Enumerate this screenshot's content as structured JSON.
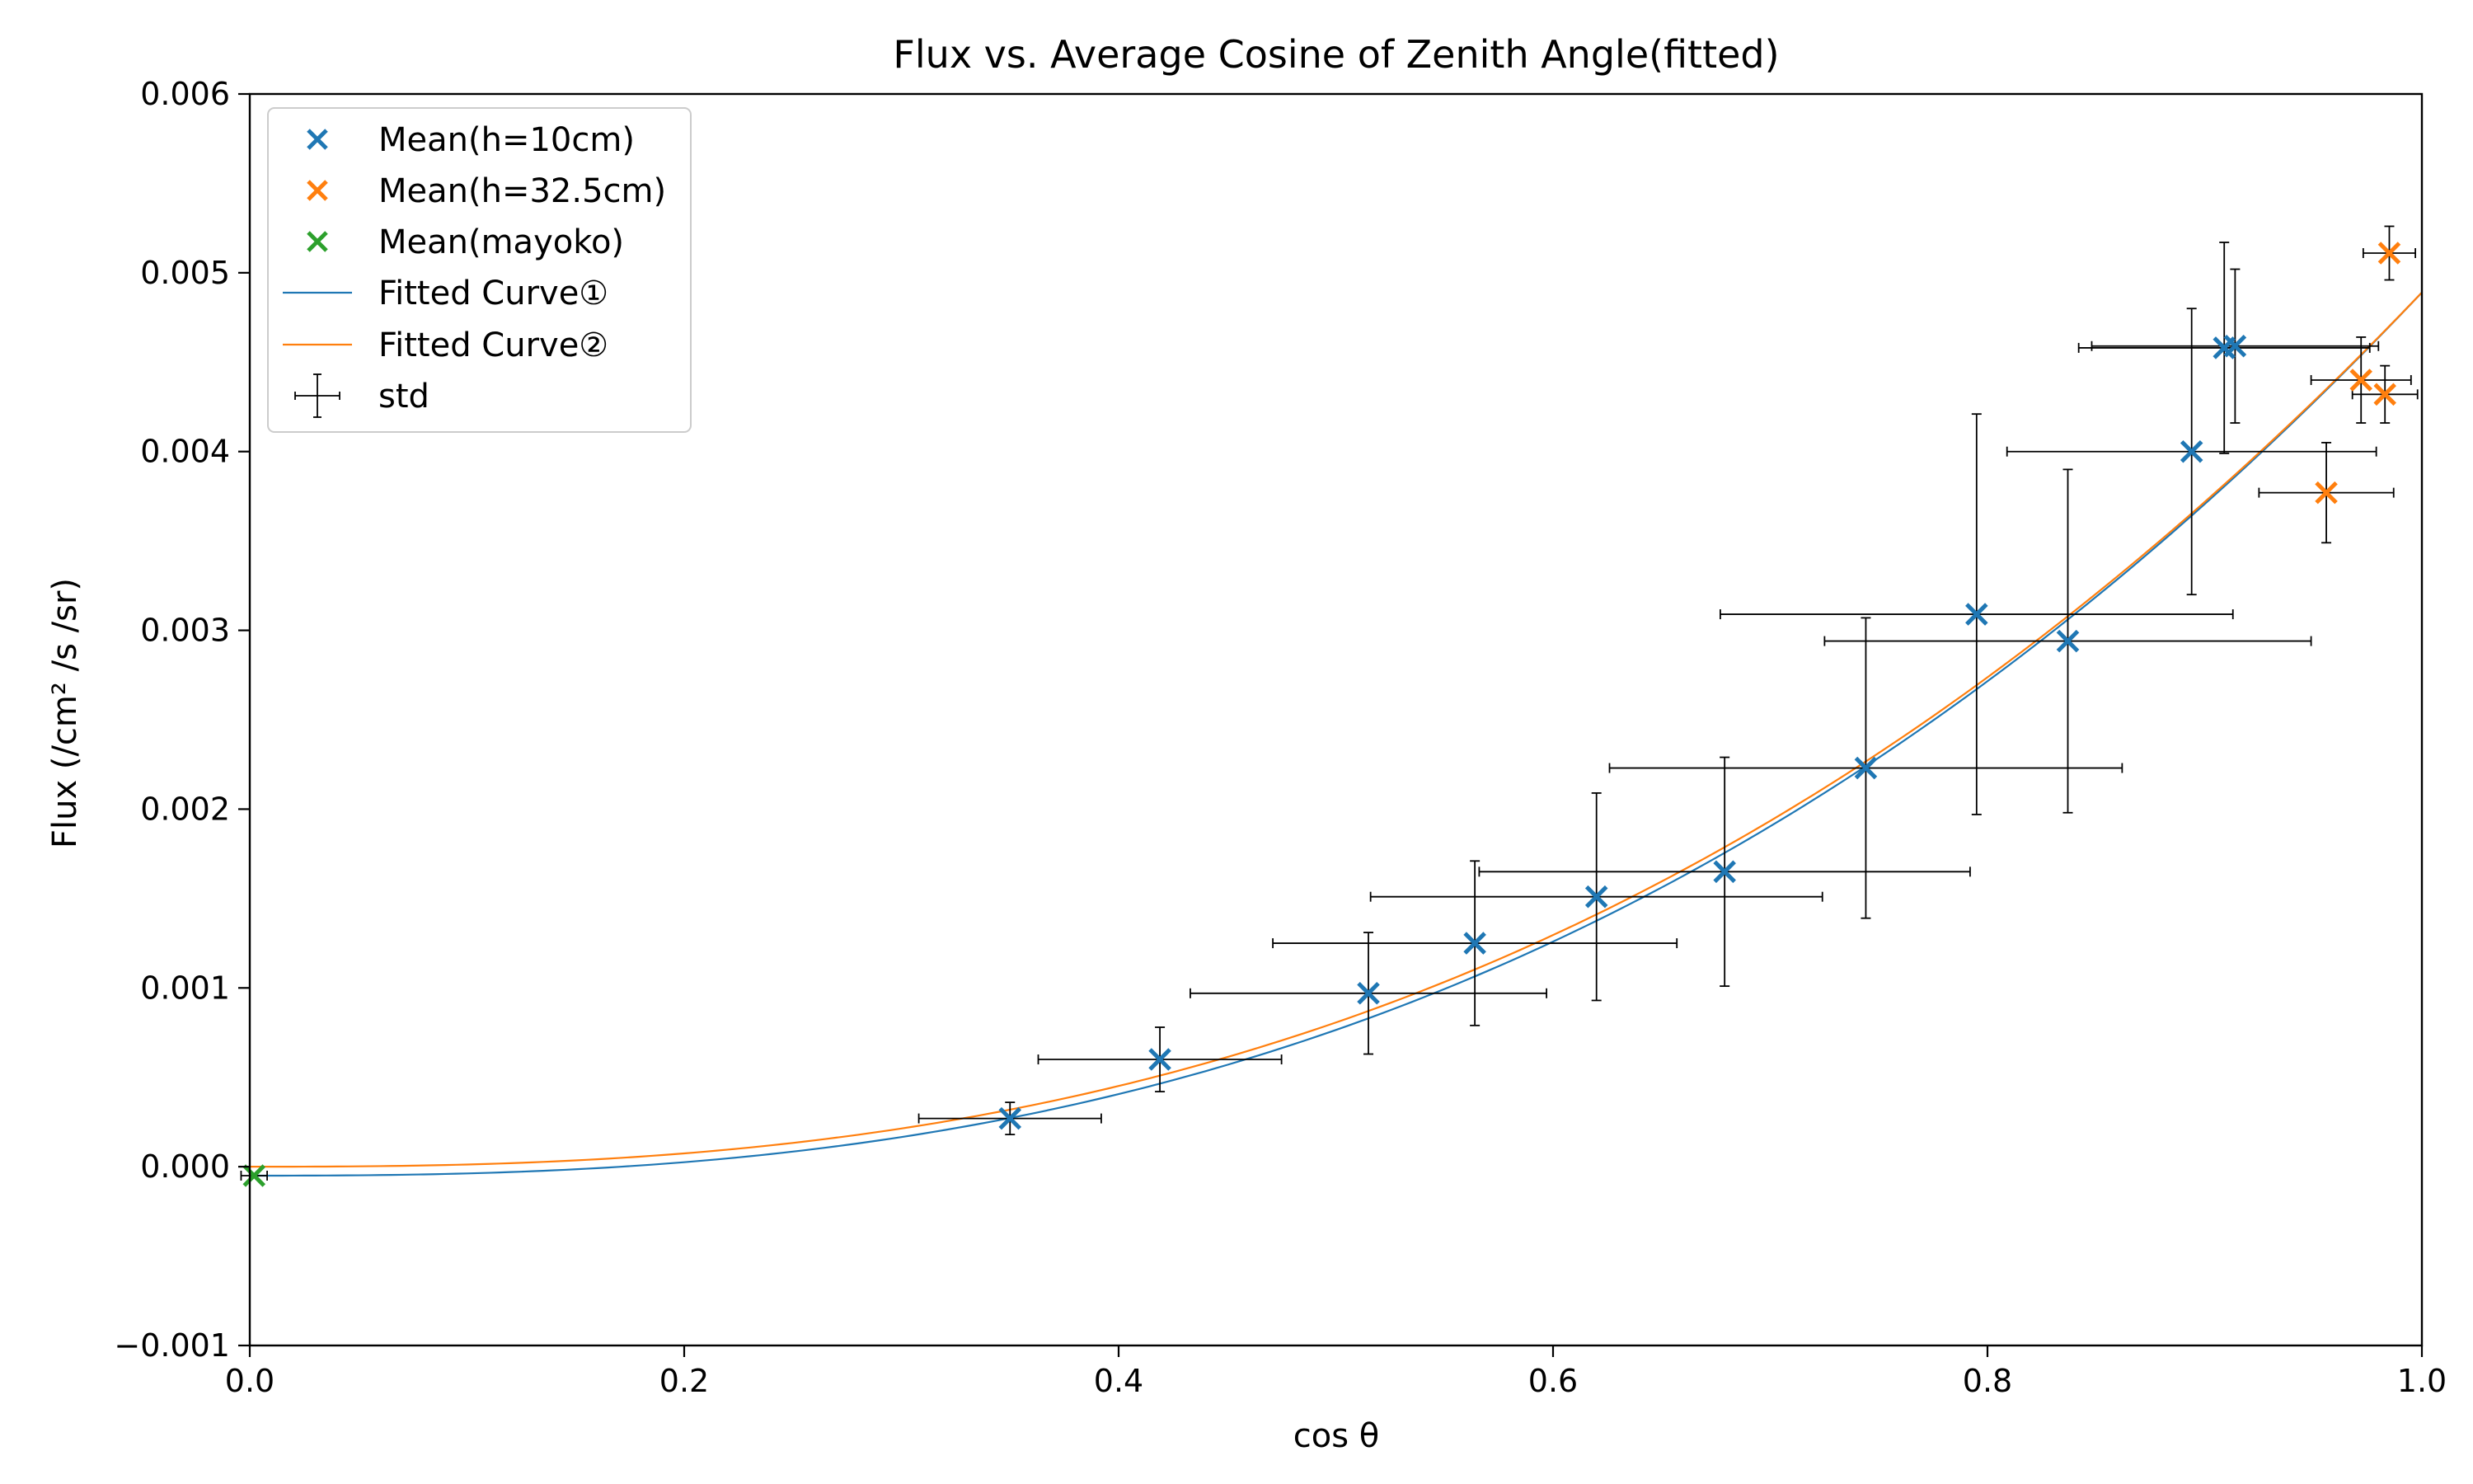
{
  "chart_data": {
    "type": "scatter",
    "title": "Flux vs. Average Cosine of Zenith Angle(fitted)",
    "xlabel": "cos θ",
    "ylabel": "Flux (/cm² /s /sr)",
    "xlim": [
      0.0,
      1.0
    ],
    "ylim": [
      -0.001,
      0.006
    ],
    "x_ticks": [
      "0.0",
      "0.2",
      "0.4",
      "0.6",
      "0.8",
      "1.0"
    ],
    "y_ticks": [
      "−0.001",
      "0.000",
      "0.001",
      "0.002",
      "0.003",
      "0.004",
      "0.005",
      "0.006"
    ],
    "grid": false,
    "legend": {
      "position": "top-left",
      "entries": [
        "Mean(h=10cm)",
        "Mean(h=32.5cm)",
        "Mean(mayoko)",
        "Fitted Curve①",
        "Fitted Curve②",
        "std"
      ]
    },
    "series": [
      {
        "name": "Mean(h=10cm)",
        "color": "#1f77b4",
        "marker": "x",
        "points": [
          {
            "x": 0.35,
            "y": 0.00027,
            "xerr": 0.042,
            "yerr": 9e-05
          },
          {
            "x": 0.419,
            "y": 0.0006,
            "xerr": 0.056,
            "yerr": 0.00018
          },
          {
            "x": 0.515,
            "y": 0.00097,
            "xerr": 0.082,
            "yerr": 0.00034
          },
          {
            "x": 0.564,
            "y": 0.00125,
            "xerr": 0.093,
            "yerr": 0.00046
          },
          {
            "x": 0.62,
            "y": 0.00151,
            "xerr": 0.104,
            "yerr": 0.00058
          },
          {
            "x": 0.679,
            "y": 0.00165,
            "xerr": 0.113,
            "yerr": 0.00064
          },
          {
            "x": 0.744,
            "y": 0.00223,
            "xerr": 0.118,
            "yerr": 0.00084
          },
          {
            "x": 0.795,
            "y": 0.00309,
            "xerr": 0.118,
            "yerr": 0.00112
          },
          {
            "x": 0.837,
            "y": 0.00294,
            "xerr": 0.112,
            "yerr": 0.00096
          },
          {
            "x": 0.894,
            "y": 0.004,
            "xerr": 0.085,
            "yerr": 0.0008
          },
          {
            "x": 0.909,
            "y": 0.00458,
            "xerr": 0.067,
            "yerr": 0.00059
          },
          {
            "x": 0.914,
            "y": 0.00459,
            "xerr": 0.066,
            "yerr": 0.00043
          }
        ]
      },
      {
        "name": "Mean(h=32.5cm)",
        "color": "#ff7f0e",
        "marker": "x",
        "points": [
          {
            "x": 0.956,
            "y": 0.00377,
            "xerr": 0.031,
            "yerr": 0.00028
          },
          {
            "x": 0.972,
            "y": 0.0044,
            "xerr": 0.023,
            "yerr": 0.00024
          },
          {
            "x": 0.983,
            "y": 0.00432,
            "xerr": 0.015,
            "yerr": 0.00016
          },
          {
            "x": 0.985,
            "y": 0.00511,
            "xerr": 0.012,
            "yerr": 0.00015
          }
        ]
      },
      {
        "name": "Mean(mayoko)",
        "color": "#2ca02c",
        "marker": "x",
        "points": [
          {
            "x": 0.002,
            "y": -5e-05,
            "xerr": 0.006,
            "yerr": 0.0
          }
        ]
      }
    ],
    "fitted_curves": [
      {
        "name": "Fitted Curve①",
        "color": "#1f77b4",
        "x_start": 0.0,
        "y_start": -5e-05,
        "x_end": 1.0,
        "y_end": 0.00489
      },
      {
        "name": "Fitted Curve②",
        "color": "#ff7f0e",
        "x_start": 0.0,
        "y_start": 0.0,
        "x_end": 1.0,
        "y_end": 0.00489
      }
    ],
    "error_bar_color": "#000000"
  }
}
